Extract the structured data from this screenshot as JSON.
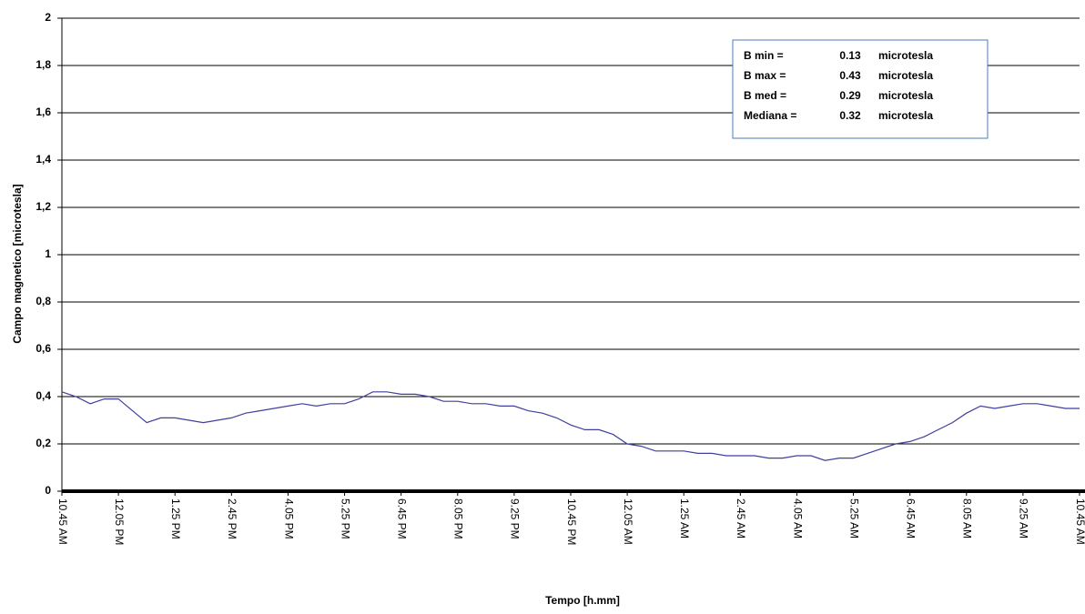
{
  "chart_data": {
    "type": "line",
    "y_label": "Campo magnetico [microtesla]",
    "x_label": "Tempo [h.mm]",
    "categories": [
      "10.45 AM",
      null,
      null,
      null,
      "12.05 PM",
      null,
      null,
      null,
      "1.25 PM",
      null,
      null,
      null,
      "2.45 PM",
      null,
      null,
      null,
      "4.05 PM",
      null,
      null,
      null,
      "5.25 PM",
      null,
      null,
      null,
      "6.45 PM",
      null,
      null,
      null,
      "8.05 PM",
      null,
      null,
      null,
      "9.25 PM",
      null,
      null,
      null,
      "10.45 PM",
      null,
      null,
      null,
      "12.05 AM",
      null,
      null,
      null,
      "1.25 AM",
      null,
      null,
      null,
      "2.45 AM",
      null,
      null,
      null,
      "4.05 AM",
      null,
      null,
      null,
      "5.25 AM",
      null,
      null,
      null,
      "6.45 AM",
      null,
      null,
      null,
      "8.05 AM",
      null,
      null,
      null,
      "9.25 AM",
      null,
      null,
      null,
      "10.45 AM"
    ],
    "values": [
      0.42,
      0.4,
      0.37,
      0.39,
      0.39,
      0.34,
      0.29,
      0.31,
      0.31,
      0.3,
      0.29,
      0.3,
      0.31,
      0.33,
      0.34,
      0.35,
      0.36,
      0.37,
      0.36,
      0.37,
      0.37,
      0.39,
      0.42,
      0.42,
      0.41,
      0.41,
      0.4,
      0.38,
      0.38,
      0.37,
      0.37,
      0.36,
      0.36,
      0.34,
      0.33,
      0.31,
      0.28,
      0.26,
      0.26,
      0.24,
      0.2,
      0.19,
      0.17,
      0.17,
      0.17,
      0.16,
      0.16,
      0.15,
      0.15,
      0.15,
      0.14,
      0.14,
      0.15,
      0.15,
      0.13,
      0.14,
      0.14,
      0.16,
      0.18,
      0.2,
      0.21,
      0.23,
      0.26,
      0.29,
      0.33,
      0.36,
      0.35,
      0.36,
      0.37,
      0.37,
      0.36,
      0.35,
      0.35
    ],
    "color": "#3f3f9f",
    "ylim": [
      0,
      2
    ],
    "yticks": [
      0,
      {
        "value": 0.2,
        "label": "0,2"
      },
      {
        "value": 0.4,
        "label": "0,4"
      },
      {
        "value": 0.6,
        "label": "0,6"
      },
      {
        "value": 0.8,
        "label": "0,8"
      },
      1,
      {
        "value": 1.2,
        "label": "1,2"
      },
      {
        "value": 1.4,
        "label": "1,4"
      },
      {
        "value": 1.6,
        "label": "1,6"
      },
      {
        "value": 1.8,
        "label": "1,8"
      },
      2
    ],
    "grid": true,
    "annotations": [
      {
        "label": "B min =",
        "value": 0.13,
        "unit": "microtesla"
      },
      {
        "label": "B max =",
        "value": 0.43,
        "unit": "microtesla"
      },
      {
        "label": "B med =",
        "value": 0.29,
        "unit": "microtesla"
      },
      {
        "label": "Mediana =",
        "value": 0.32,
        "unit": "microtesla"
      }
    ]
  }
}
